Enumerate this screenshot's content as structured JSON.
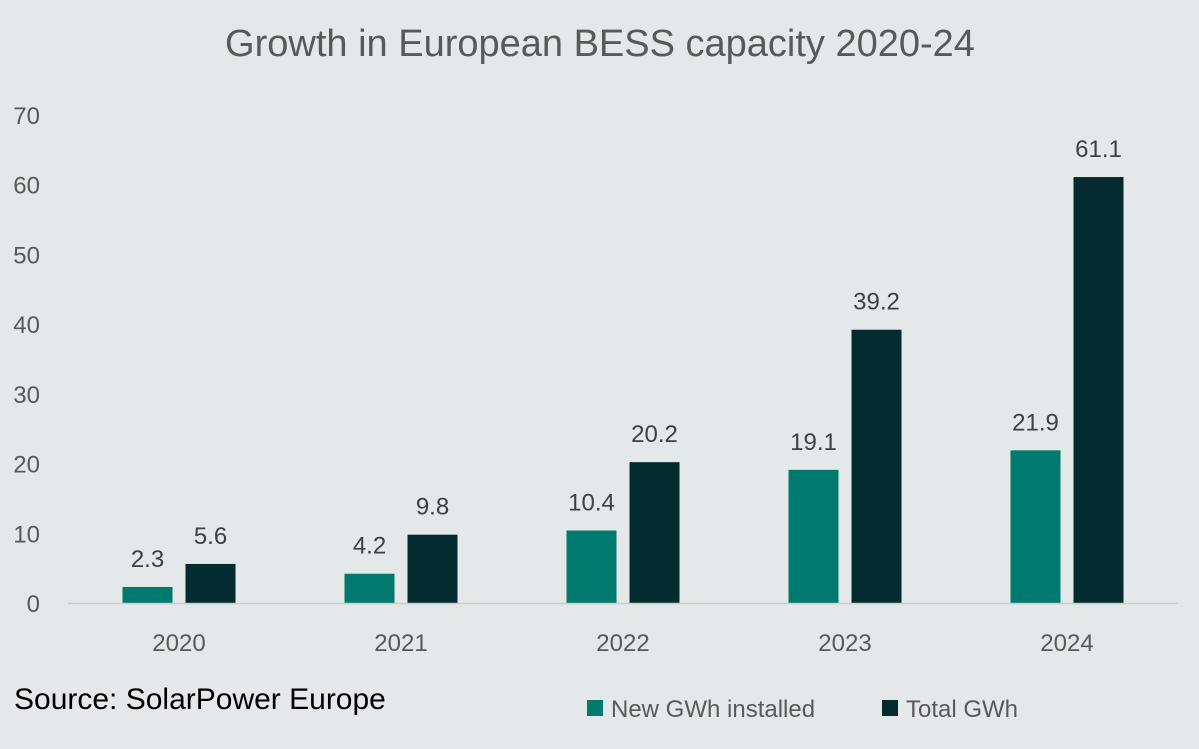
{
  "chart_data": {
    "type": "bar",
    "title": "Growth in European BESS capacity 2020-24",
    "categories": [
      "2020",
      "2021",
      "2022",
      "2023",
      "2024"
    ],
    "series": [
      {
        "name": "New GWh installed",
        "color": "#007A6E",
        "values": [
          2.3,
          4.2,
          10.4,
          19.1,
          21.9
        ],
        "labels": [
          "2.3",
          "4.2",
          "10.4",
          "19.1",
          "21.9"
        ]
      },
      {
        "name": "Total GWh",
        "color": "#042C30",
        "values": [
          5.6,
          9.8,
          20.2,
          39.2,
          61.1
        ],
        "labels": [
          "5.6",
          "9.8",
          "20.2",
          "39.2",
          "61.1"
        ]
      }
    ],
    "xlabel": "",
    "ylabel": "",
    "ylim": [
      0,
      70
    ],
    "yticks": [
      "0",
      "10",
      "20",
      "30",
      "40",
      "50",
      "60",
      "70"
    ],
    "grid": false,
    "legend_position": "bottom-right",
    "axis_color": "#C8CCCC",
    "background": "#E5E8E8"
  },
  "source": "Source: SolarPower Europe"
}
